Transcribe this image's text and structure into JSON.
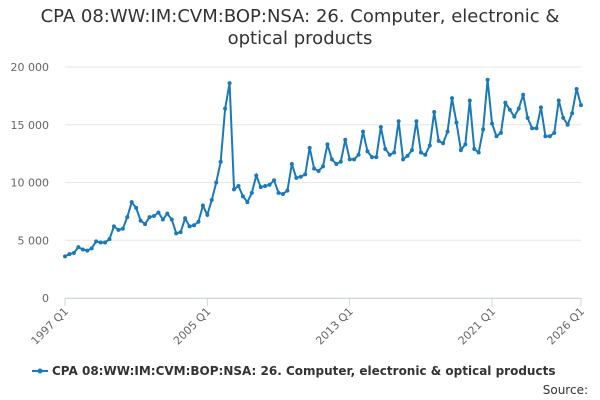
{
  "chart_data": {
    "type": "line",
    "title": "CPA 08:WW:IM:CVM:BOP:NSA: 26. Computer, electronic & optical products",
    "source_label": "Source:",
    "categories": [
      "1997 Q1",
      null,
      null,
      null,
      null,
      null,
      null,
      null,
      null,
      null,
      null,
      null,
      null,
      null,
      null,
      null,
      null,
      null,
      null,
      null,
      null,
      null,
      null,
      null,
      null,
      null,
      null,
      null,
      null,
      null,
      null,
      null,
      "2005 Q1",
      null,
      null,
      null,
      null,
      null,
      null,
      null,
      null,
      null,
      null,
      null,
      null,
      null,
      null,
      null,
      null,
      null,
      null,
      null,
      null,
      null,
      null,
      null,
      null,
      null,
      null,
      null,
      null,
      null,
      null,
      null,
      "2013 Q1",
      null,
      null,
      null,
      null,
      null,
      null,
      null,
      null,
      null,
      null,
      null,
      null,
      null,
      null,
      null,
      null,
      null,
      null,
      null,
      null,
      null,
      null,
      null,
      null,
      null,
      null,
      null,
      null,
      null,
      null,
      null,
      "2021 Q1",
      null,
      null,
      null,
      null,
      null,
      null,
      null,
      null,
      null,
      null,
      null,
      null,
      null,
      null,
      null,
      null,
      null,
      null,
      null,
      "2026 Q1"
    ],
    "series": [
      {
        "name": "CPA 08:WW:IM:CVM:BOP:NSA: 26. Computer, electronic & optical products",
        "color": "#1a7ab8",
        "values": [
          3600,
          3800,
          3900,
          4400,
          4200,
          4100,
          4300,
          4900,
          4800,
          4800,
          5100,
          6200,
          5900,
          6000,
          7000,
          8300,
          7800,
          6700,
          6400,
          7000,
          7100,
          7400,
          6800,
          7300,
          6800,
          5600,
          5700,
          6900,
          6200,
          6300,
          6600,
          8000,
          7200,
          8500,
          10000,
          11800,
          16400,
          18600,
          9400,
          9700,
          8800,
          8300,
          9100,
          10600,
          9600,
          9700,
          9800,
          10200,
          9100,
          9000,
          9300,
          11600,
          10400,
          10500,
          10700,
          13000,
          11200,
          11000,
          11400,
          13300,
          12000,
          11600,
          11800,
          13700,
          12000,
          12000,
          12400,
          14400,
          12700,
          12200,
          12200,
          14800,
          12900,
          12400,
          12600,
          15300,
          12000,
          12300,
          12800,
          15300,
          12600,
          12400,
          13200,
          16100,
          13600,
          13400,
          14400,
          17300,
          15200,
          12800,
          13300,
          17100,
          12900,
          12600,
          14600,
          18900,
          15100,
          14000,
          14300,
          16900,
          16300,
          15700,
          16400,
          17600,
          15600,
          14700,
          14700,
          16500,
          14000,
          14000,
          14300,
          17100,
          15600,
          15000,
          16000,
          18100,
          16700
        ]
      }
    ],
    "ylim": [
      0,
      20000
    ],
    "yticks": [
      0,
      {
        "value": 5000,
        "label": "5 000"
      },
      {
        "value": 10000,
        "label": "10 000"
      },
      {
        "value": 15000,
        "label": "15 000"
      },
      {
        "value": 20000,
        "label": "20 000"
      }
    ],
    "grid": true
  }
}
